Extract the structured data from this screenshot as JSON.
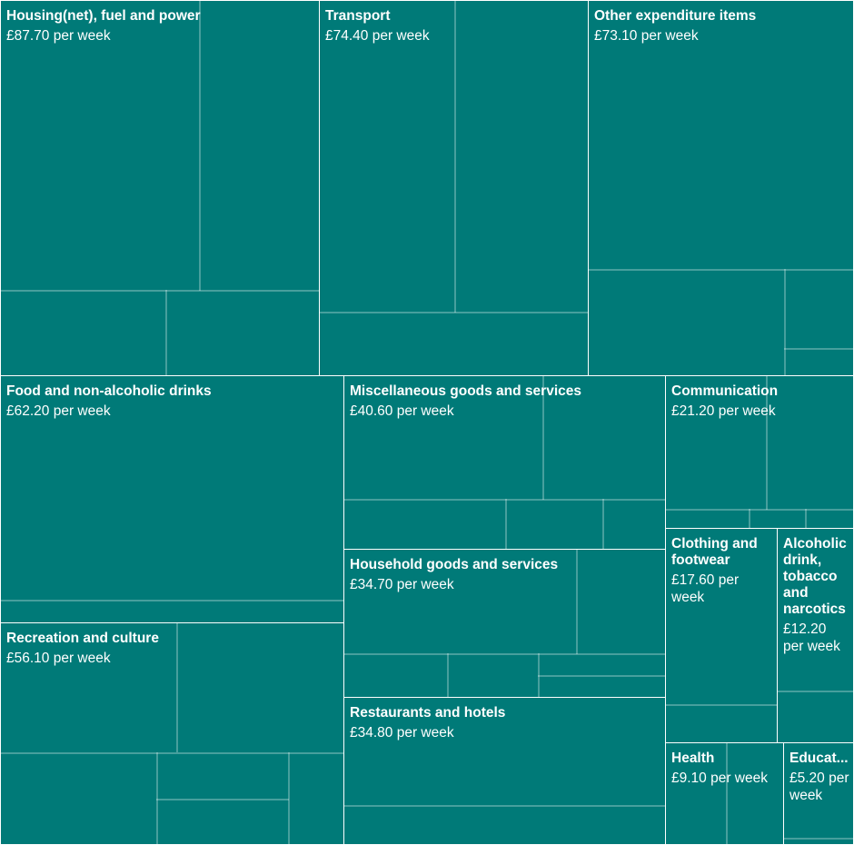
{
  "chart_data": {
    "type": "treemap",
    "unit_suffix": "per week",
    "colors": {
      "tile": "#007a78",
      "border": "#ffffff"
    },
    "items": [
      {
        "name": "Housing(net), fuel and power",
        "value": 87.7,
        "value_label": "£87.70 per week"
      },
      {
        "name": "Transport",
        "value": 74.4,
        "value_label": "£74.40 per week"
      },
      {
        "name": "Other expenditure items",
        "value": 73.1,
        "value_label": "£73.10 per week"
      },
      {
        "name": "Food and non-alcoholic drinks",
        "value": 62.2,
        "value_label": "£62.20 per week"
      },
      {
        "name": "Recreation and culture",
        "value": 56.1,
        "value_label": "£56.10 per week"
      },
      {
        "name": "Miscellaneous goods and services",
        "value": 40.6,
        "value_label": "£40.60 per week"
      },
      {
        "name": "Household goods and services",
        "value": 34.7,
        "value_label": "£34.70 per week"
      },
      {
        "name": "Restaurants and hotels",
        "value": 34.8,
        "value_label": "£34.80 per week"
      },
      {
        "name": "Communication",
        "value": 21.2,
        "value_label": "£21.20 per week"
      },
      {
        "name": "Clothing and footwear",
        "value": 17.6,
        "value_label": "£17.60 per week"
      },
      {
        "name": "Alcoholic drink, tobacco and narcotics",
        "value": 12.2,
        "value_label": "£12.20 per week"
      },
      {
        "name": "Health",
        "value": 9.1,
        "value_label": "£9.10 per week"
      },
      {
        "name": "Education",
        "display_name": "Educat...",
        "value": 5.2,
        "value_label": "£5.20 per week"
      }
    ]
  }
}
